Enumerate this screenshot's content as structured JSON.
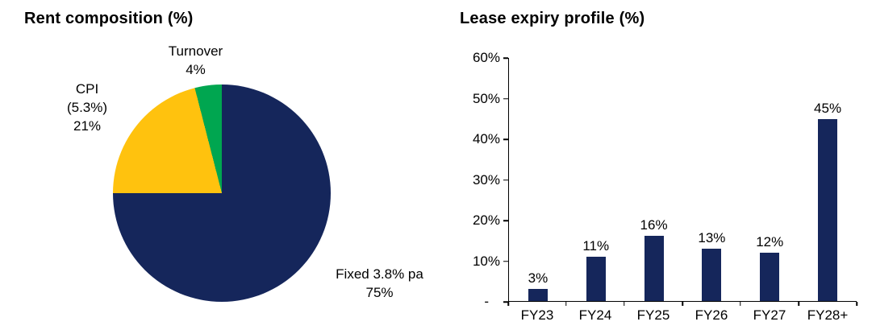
{
  "chart_data": [
    {
      "type": "pie",
      "title": "Rent composition (%)",
      "start_angle_deg": 0,
      "direction": "clockwise",
      "slices": [
        {
          "label": "Fixed 3.8% pa",
          "value": 75,
          "pct_label": "75%",
          "color": "#15265B",
          "callout": "Fixed 3.8% pa\n75%"
        },
        {
          "label": "CPI (5.3%)",
          "value": 21,
          "pct_label": "21%",
          "color": "#FFC20E",
          "callout": "CPI\n(5.3%)\n21%"
        },
        {
          "label": "Turnover",
          "value": 4,
          "pct_label": "4%",
          "color": "#00A650",
          "callout": "Turnover\n4%"
        }
      ]
    },
    {
      "type": "bar",
      "title": "Lease expiry profile (%)",
      "categories": [
        "FY23",
        "FY24",
        "FY25",
        "FY26",
        "FY27",
        "FY28+"
      ],
      "values": [
        3,
        11,
        16,
        13,
        12,
        45
      ],
      "value_labels": [
        "3%",
        "11%",
        "16%",
        "13%",
        "12%",
        "45%"
      ],
      "bar_color": "#15265B",
      "xlabel": "",
      "ylabel": "",
      "ylim": [
        0,
        60
      ],
      "grid": false,
      "legend": false,
      "y_ticks": [
        {
          "value": 60,
          "label": "60%"
        },
        {
          "value": 50,
          "label": "50%"
        },
        {
          "value": 40,
          "label": "40%"
        },
        {
          "value": 30,
          "label": "30%"
        },
        {
          "value": 20,
          "label": "20%"
        },
        {
          "value": 10,
          "label": "10%"
        },
        {
          "value": 0,
          "label": "-"
        }
      ]
    }
  ]
}
